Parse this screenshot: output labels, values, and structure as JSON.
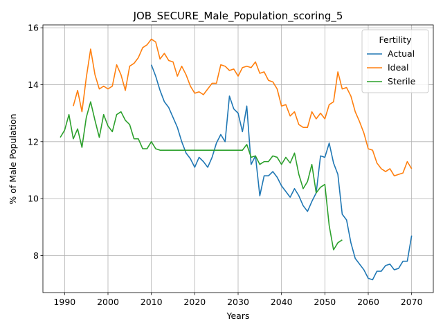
{
  "chart_data": {
    "type": "line",
    "title": "JOB_SECURE_Male_Population_scoring_5",
    "xlabel": "Years",
    "ylabel": "% of Male Population",
    "xlim": [
      1985,
      2075
    ],
    "ylim": [
      6.7,
      16.1
    ],
    "xticks": [
      1990,
      2000,
      2010,
      2020,
      2030,
      2040,
      2050,
      2060,
      2070
    ],
    "yticks": [
      8,
      10,
      12,
      14,
      16
    ],
    "grid": true,
    "legend": {
      "title": "Fertility",
      "placement": "top-right"
    },
    "series": [
      {
        "name": "Actual",
        "color": "#1f77b4",
        "x": [
          2010,
          2011,
          2012,
          2013,
          2014,
          2015,
          2016,
          2017,
          2018,
          2019,
          2020,
          2021,
          2022,
          2023,
          2024,
          2025,
          2026,
          2027,
          2028,
          2029,
          2030,
          2031,
          2032,
          2033,
          2034,
          2035,
          2036,
          2037,
          2038,
          2039,
          2040,
          2041,
          2042,
          2043,
          2044,
          2045,
          2046,
          2047,
          2048,
          2049,
          2050,
          2051,
          2052,
          2053,
          2054,
          2055,
          2056,
          2057,
          2058,
          2059,
          2060,
          2061,
          2062,
          2063,
          2064,
          2065,
          2066,
          2067,
          2068,
          2069,
          2070
        ],
        "y": [
          14.7,
          14.3,
          13.8,
          13.4,
          13.2,
          12.85,
          12.5,
          12.0,
          11.6,
          11.4,
          11.1,
          11.45,
          11.3,
          11.1,
          11.45,
          11.95,
          12.25,
          12.0,
          13.6,
          13.15,
          13.0,
          12.35,
          13.25,
          11.2,
          11.5,
          10.1,
          10.8,
          10.8,
          10.95,
          10.75,
          10.45,
          10.25,
          10.05,
          10.35,
          10.1,
          9.75,
          9.55,
          9.9,
          10.2,
          11.5,
          11.45,
          11.95,
          11.25,
          10.85,
          9.45,
          9.25,
          8.45,
          7.9,
          7.7,
          7.5,
          7.2,
          7.15,
          7.45,
          7.45,
          7.65,
          7.7,
          7.5,
          7.55,
          7.8,
          7.8,
          8.7
        ]
      },
      {
        "name": "Ideal",
        "color": "#ff7f0e",
        "x": [
          1992,
          1993,
          1994,
          1995,
          1996,
          1997,
          1998,
          1999,
          2000,
          2001,
          2002,
          2003,
          2004,
          2005,
          2006,
          2007,
          2008,
          2009,
          2010,
          2011,
          2012,
          2013,
          2014,
          2015,
          2016,
          2017,
          2018,
          2019,
          2020,
          2021,
          2022,
          2023,
          2024,
          2025,
          2026,
          2027,
          2028,
          2029,
          2030,
          2031,
          2032,
          2033,
          2034,
          2035,
          2036,
          2037,
          2038,
          2039,
          2040,
          2041,
          2042,
          2043,
          2044,
          2045,
          2046,
          2047,
          2048,
          2049,
          2050,
          2051,
          2052,
          2053,
          2054,
          2055,
          2056,
          2057,
          2058,
          2059,
          2060,
          2061,
          2062,
          2063,
          2064,
          2065,
          2066,
          2067,
          2068,
          2069,
          2070
        ],
        "y": [
          13.25,
          13.8,
          13.05,
          14.25,
          15.25,
          14.35,
          13.85,
          13.95,
          13.85,
          13.95,
          14.7,
          14.35,
          13.8,
          14.65,
          14.75,
          14.95,
          15.3,
          15.4,
          15.6,
          15.5,
          14.9,
          15.1,
          14.85,
          14.8,
          14.3,
          14.65,
          14.35,
          13.95,
          13.7,
          13.75,
          13.65,
          13.85,
          14.05,
          14.05,
          14.7,
          14.65,
          14.5,
          14.55,
          14.3,
          14.6,
          14.65,
          14.6,
          14.8,
          14.4,
          14.45,
          14.15,
          14.1,
          13.85,
          13.25,
          13.3,
          12.9,
          13.05,
          12.6,
          12.5,
          12.5,
          13.05,
          12.8,
          13.0,
          12.8,
          13.3,
          13.4,
          14.45,
          13.85,
          13.9,
          13.6,
          13.05,
          12.7,
          12.3,
          11.75,
          11.7,
          11.25,
          11.05,
          10.95,
          11.05,
          10.8,
          10.85,
          10.9,
          11.3,
          11.05
        ]
      },
      {
        "name": "Sterile",
        "color": "#2ca02c",
        "x": [
          1989,
          1990,
          1991,
          1992,
          1993,
          1994,
          1995,
          1996,
          1997,
          1998,
          1999,
          2000,
          2001,
          2002,
          2003,
          2004,
          2005,
          2006,
          2007,
          2008,
          2009,
          2010,
          2011,
          2012,
          2013,
          2014,
          2015,
          2016,
          2017,
          2018,
          2019,
          2020,
          2021,
          2022,
          2023,
          2024,
          2025,
          2026,
          2027,
          2028,
          2029,
          2030,
          2031,
          2032,
          2033,
          2034,
          2035,
          2036,
          2037,
          2038,
          2039,
          2040,
          2041,
          2042,
          2043,
          2044,
          2045,
          2046,
          2047,
          2048,
          2049,
          2050,
          2051,
          2052,
          2053,
          2054
        ],
        "y": [
          12.15,
          12.4,
          12.95,
          12.1,
          12.45,
          11.8,
          12.85,
          13.4,
          12.75,
          12.15,
          12.95,
          12.55,
          12.35,
          12.95,
          13.05,
          12.75,
          12.6,
          12.1,
          12.1,
          11.75,
          11.75,
          12.0,
          11.75,
          11.7,
          11.7,
          11.7,
          11.7,
          11.7,
          11.7,
          11.7,
          11.7,
          11.7,
          11.7,
          11.7,
          11.7,
          11.7,
          11.7,
          11.7,
          11.7,
          11.7,
          11.7,
          11.7,
          11.7,
          11.9,
          11.45,
          11.5,
          11.2,
          11.3,
          11.3,
          11.5,
          11.45,
          11.2,
          11.45,
          11.25,
          11.6,
          10.85,
          10.35,
          10.6,
          11.2,
          10.2,
          10.4,
          10.5,
          9.05,
          8.2,
          8.45,
          8.55
        ]
      }
    ]
  }
}
